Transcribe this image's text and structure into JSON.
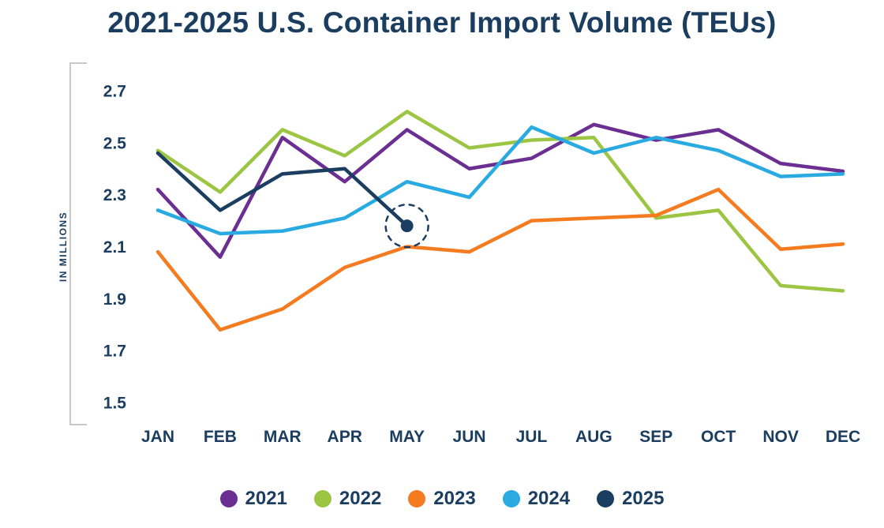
{
  "colors": {
    "title": "#1B3D60",
    "axis_text": "#1B3D60",
    "axis_line": "#C8C8C8",
    "background": "#FFFFFF"
  },
  "chart_data": {
    "type": "line",
    "title": "2021-2025 U.S. Container Import Volume (TEUs)",
    "xlabel": "",
    "ylabel": "IN MILLIONS",
    "ylim": [
      1.5,
      2.7
    ],
    "yticks": [
      2.7,
      2.5,
      2.3,
      2.1,
      1.9,
      1.7,
      1.5
    ],
    "grid": false,
    "legend_position": "bottom",
    "categories": [
      "JAN",
      "FEB",
      "MAR",
      "APR",
      "MAY",
      "JUN",
      "JUL",
      "AUG",
      "SEP",
      "OCT",
      "NOV",
      "DEC"
    ],
    "series": [
      {
        "name": "2021",
        "color": "#6B2E91",
        "values": [
          2.32,
          2.06,
          2.52,
          2.35,
          2.55,
          2.4,
          2.44,
          2.57,
          2.51,
          2.55,
          2.42,
          2.39
        ]
      },
      {
        "name": "2022",
        "color": "#9DC544",
        "values": [
          2.47,
          2.31,
          2.55,
          2.45,
          2.62,
          2.48,
          2.51,
          2.52,
          2.21,
          2.24,
          1.95,
          1.93
        ]
      },
      {
        "name": "2023",
        "color": "#F47B20",
        "values": [
          2.08,
          1.78,
          1.86,
          2.02,
          2.1,
          2.08,
          2.2,
          2.21,
          2.22,
          2.32,
          2.09,
          2.11
        ]
      },
      {
        "name": "2024",
        "color": "#29ABE2",
        "values": [
          2.24,
          2.15,
          2.16,
          2.21,
          2.35,
          2.29,
          2.56,
          2.46,
          2.52,
          2.47,
          2.37,
          2.38
        ]
      },
      {
        "name": "2025",
        "color": "#1B3D60",
        "values": [
          2.46,
          2.24,
          2.38,
          2.4,
          2.18
        ]
      }
    ],
    "highlight": {
      "series": "2025",
      "month": "MAY",
      "value": 2.18,
      "style": "dashed-circle"
    }
  }
}
